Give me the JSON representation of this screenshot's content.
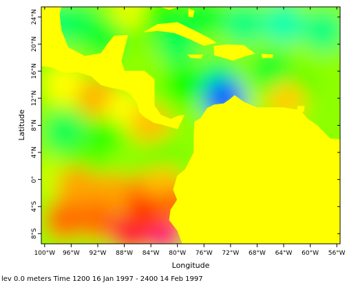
{
  "chart_data": {
    "type": "heatmap",
    "title": "",
    "xlabel": "Longitude",
    "ylabel": "Latitude",
    "xlim": [
      -100.5,
      -55.5
    ],
    "ylim": [
      -9.5,
      25.5
    ],
    "x_ticks": [
      {
        "value": -100,
        "label": "100°W"
      },
      {
        "value": -96,
        "label": "96°W"
      },
      {
        "value": -92,
        "label": "92°W"
      },
      {
        "value": -88,
        "label": "88°W"
      },
      {
        "value": -84,
        "label": "84°W"
      },
      {
        "value": -80,
        "label": "80°W"
      },
      {
        "value": -76,
        "label": "76°W"
      },
      {
        "value": -72,
        "label": "72°W"
      },
      {
        "value": -68,
        "label": "68°W"
      },
      {
        "value": -64,
        "label": "64°W"
      },
      {
        "value": -60,
        "label": "60°W"
      },
      {
        "value": -56,
        "label": "56°W"
      }
    ],
    "y_ticks": [
      {
        "value": -8,
        "label": "8°S"
      },
      {
        "value": -4,
        "label": "4°S"
      },
      {
        "value": 0,
        "label": "0°"
      },
      {
        "value": 4,
        "label": "4°N"
      },
      {
        "value": 8,
        "label": "8°N"
      },
      {
        "value": 12,
        "label": "12°N"
      },
      {
        "value": 16,
        "label": "16°N"
      },
      {
        "value": 20,
        "label": "20°N"
      },
      {
        "value": 24,
        "label": "24°N"
      }
    ],
    "land_color": "#ffff00",
    "colormap": [
      "#ff00ff",
      "#ff0000",
      "#ffa500",
      "#ffff00",
      "#00ff00",
      "#00ffff",
      "#0000ff"
    ],
    "ocean_field_points": [
      {
        "lon": -99,
        "lat": 23,
        "value": 0.6
      },
      {
        "lon": -95,
        "lat": 23,
        "value": 0.55
      },
      {
        "lon": -91,
        "lat": 21,
        "value": 0.5
      },
      {
        "lon": -86,
        "lat": 23,
        "value": 0.3
      },
      {
        "lon": -87,
        "lat": 25,
        "value": 0.05
      },
      {
        "lon": -82,
        "lat": 24,
        "value": 0.4
      },
      {
        "lon": -80,
        "lat": 20,
        "value": 0.55
      },
      {
        "lon": -76,
        "lat": 24,
        "value": 0.5
      },
      {
        "lon": -70,
        "lat": 23,
        "value": 0.6
      },
      {
        "lon": -64,
        "lat": 23,
        "value": 0.65
      },
      {
        "lon": -58,
        "lat": 22,
        "value": 0.6
      },
      {
        "lon": -66,
        "lat": 16,
        "value": 0.5
      },
      {
        "lon": -74,
        "lat": 15,
        "value": 0.55
      },
      {
        "lon": -79,
        "lat": 14,
        "value": 0.45
      },
      {
        "lon": -62,
        "lat": 13,
        "value": 0.4
      },
      {
        "lon": -63.5,
        "lat": 11.5,
        "value": -0.15
      },
      {
        "lon": -70,
        "lat": 11.5,
        "value": 0.15
      },
      {
        "lon": -73,
        "lat": 12,
        "value": 0.9
      },
      {
        "lon": -58,
        "lat": 10,
        "value": 0.2
      },
      {
        "lon": -97,
        "lat": 14,
        "value": 0.0
      },
      {
        "lon": -92,
        "lat": 12,
        "value": -0.25
      },
      {
        "lon": -88,
        "lat": 10,
        "value": 0.0
      },
      {
        "lon": -84,
        "lat": 8,
        "value": -0.2
      },
      {
        "lon": -97,
        "lat": 7,
        "value": 0.55
      },
      {
        "lon": -91,
        "lat": 6,
        "value": 0.4
      },
      {
        "lon": -94,
        "lat": 3,
        "value": 0.3
      },
      {
        "lon": -87,
        "lat": 3,
        "value": 0.2
      },
      {
        "lon": -82,
        "lat": 3,
        "value": 0.25
      },
      {
        "lon": -99,
        "lat": 0,
        "value": 0.1
      },
      {
        "lon": -95,
        "lat": -1,
        "value": -0.3
      },
      {
        "lon": -90,
        "lat": -2,
        "value": -0.3
      },
      {
        "lon": -85,
        "lat": -2,
        "value": -0.35
      },
      {
        "lon": -82,
        "lat": -1,
        "value": -0.2
      },
      {
        "lon": -97,
        "lat": -6,
        "value": -0.4
      },
      {
        "lon": -92,
        "lat": -6,
        "value": -0.4
      },
      {
        "lon": -87,
        "lat": -8,
        "value": -0.7
      },
      {
        "lon": -82,
        "lat": -8,
        "value": -0.8
      },
      {
        "lon": -85,
        "lat": -5,
        "value": -0.5
      },
      {
        "lon": -80,
        "lat": -4,
        "value": -0.4
      }
    ],
    "land_regions": [
      {
        "name": "central-america-mexico",
        "points": [
          [
            -100.5,
            16.8
          ],
          [
            -99,
            16.6
          ],
          [
            -97,
            15.8
          ],
          [
            -95,
            15.9
          ],
          [
            -93,
            15.3
          ],
          [
            -91.5,
            14
          ],
          [
            -90,
            13.6
          ],
          [
            -88,
            13.2
          ],
          [
            -87,
            12.6
          ],
          [
            -86,
            11.2
          ],
          [
            -85.7,
            10
          ],
          [
            -85,
            9.3
          ],
          [
            -83.5,
            8.4
          ],
          [
            -82.5,
            8.2
          ],
          [
            -80,
            7.5
          ],
          [
            -79,
            9.5
          ],
          [
            -79.8,
            9.4
          ],
          [
            -81,
            8.9
          ],
          [
            -82.5,
            9.5
          ],
          [
            -83.5,
            10.9
          ],
          [
            -83.5,
            14.8
          ],
          [
            -85,
            16
          ],
          [
            -88,
            16
          ],
          [
            -88.5,
            17.5
          ],
          [
            -87.5,
            21.3
          ],
          [
            -89.5,
            21.2
          ],
          [
            -90.5,
            20
          ],
          [
            -91.5,
            18.6
          ],
          [
            -94,
            18.2
          ],
          [
            -96.5,
            19.5
          ],
          [
            -97.5,
            22
          ],
          [
            -97.8,
            24.5
          ],
          [
            -97.5,
            25.5
          ],
          [
            -100.5,
            25.5
          ]
        ]
      },
      {
        "name": "south-america",
        "points": [
          [
            -55.5,
            5.9
          ],
          [
            -57,
            6
          ],
          [
            -59,
            8
          ],
          [
            -60.5,
            9
          ],
          [
            -61.5,
            10.2
          ],
          [
            -64,
            10.6
          ],
          [
            -66,
            10.6
          ],
          [
            -68,
            10.6
          ],
          [
            -70,
            11.4
          ],
          [
            -71.4,
            12.4
          ],
          [
            -72,
            11.9
          ],
          [
            -73,
            11.2
          ],
          [
            -74.5,
            11
          ],
          [
            -75.5,
            10.5
          ],
          [
            -76.5,
            9
          ],
          [
            -77.4,
            8.5
          ],
          [
            -77.5,
            6.5
          ],
          [
            -77.5,
            4
          ],
          [
            -78.8,
            1.5
          ],
          [
            -80,
            0.5
          ],
          [
            -80.6,
            -1.5
          ],
          [
            -80,
            -3
          ],
          [
            -81,
            -4.5
          ],
          [
            -81.2,
            -6
          ],
          [
            -80,
            -7.5
          ],
          [
            -79.2,
            -9.5
          ],
          [
            -55.5,
            -9.5
          ]
        ]
      },
      {
        "name": "cuba",
        "points": [
          [
            -85,
            21.8
          ],
          [
            -83,
            22.9
          ],
          [
            -80,
            23.2
          ],
          [
            -77.5,
            22
          ],
          [
            -75.5,
            21
          ],
          [
            -74.2,
            20.2
          ],
          [
            -76,
            19.8
          ],
          [
            -78,
            20.7
          ],
          [
            -80.5,
            21.7
          ],
          [
            -83,
            22
          ]
        ]
      },
      {
        "name": "hispaniola",
        "points": [
          [
            -74.5,
            19.7
          ],
          [
            -72.5,
            19.9
          ],
          [
            -70,
            19.8
          ],
          [
            -68.4,
            18.6
          ],
          [
            -70,
            18.2
          ],
          [
            -71.6,
            17.6
          ],
          [
            -73,
            18
          ],
          [
            -74.4,
            18.4
          ]
        ]
      },
      {
        "name": "jamaica",
        "points": [
          [
            -78.4,
            18.4
          ],
          [
            -76.2,
            18.4
          ],
          [
            -76.5,
            17.9
          ],
          [
            -78,
            18
          ]
        ]
      },
      {
        "name": "puerto-rico",
        "points": [
          [
            -67.3,
            18.5
          ],
          [
            -65.6,
            18.4
          ],
          [
            -65.7,
            18
          ],
          [
            -67.2,
            18
          ]
        ]
      },
      {
        "name": "florida",
        "points": [
          [
            -82.5,
            25.5
          ],
          [
            -81.2,
            25.1
          ],
          [
            -80.3,
            25.4
          ],
          [
            -80.1,
            25.5
          ]
        ]
      },
      {
        "name": "bahamas-andros",
        "points": [
          [
            -78.3,
            25.2
          ],
          [
            -77.5,
            24.9
          ],
          [
            -77.7,
            24
          ],
          [
            -78.3,
            24.1
          ]
        ]
      },
      {
        "name": "trinidad",
        "points": [
          [
            -61.9,
            10.8
          ],
          [
            -60.9,
            10.8
          ],
          [
            -61,
            10.05
          ],
          [
            -61.9,
            10.1
          ]
        ]
      }
    ]
  },
  "footer": {
    "text": "lev 0.0 meters Time 1200 16 Jan 1997 - 2400 14 Feb 1997"
  }
}
